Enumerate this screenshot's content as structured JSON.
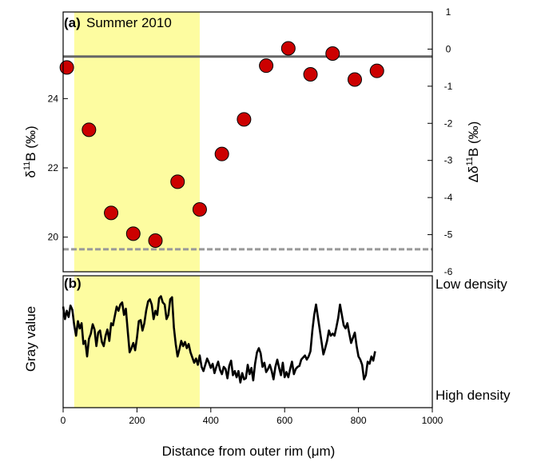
{
  "chart_data": [
    {
      "panel": "a",
      "type": "scatter",
      "title": "Summer 2010",
      "panel_label": "(a)",
      "ylabel_main": "δ",
      "ylabel_sup": "11",
      "ylabel_tail": "B (‰)",
      "y2label_main": "Δδ",
      "y2label_sup": "11",
      "y2label_tail": "B (‰)",
      "xlim": [
        0,
        1000
      ],
      "ylim": [
        19.0,
        26.5
      ],
      "y2lim": [
        -6,
        1
      ],
      "yticks": [
        20,
        22,
        24
      ],
      "y2ticks": [
        1,
        0,
        -1,
        -2,
        -3,
        -4,
        -5,
        -6
      ],
      "highlight_x_range": [
        30,
        370
      ],
      "highlight_color": "#fdfca0",
      "point_color": "#cc0000",
      "series": [
        {
          "x": [
            10,
            70,
            130,
            190,
            250,
            310,
            370,
            430,
            490,
            550,
            610,
            670,
            730,
            790,
            850
          ],
          "y": [
            24.9,
            23.1,
            20.7,
            20.1,
            19.9,
            21.6,
            20.8,
            22.4,
            23.4,
            24.95,
            25.45,
            24.7,
            25.3,
            24.55,
            24.8
          ]
        }
      ],
      "reference_lines": [
        {
          "y2": -0.2,
          "style": "solid",
          "color": "#666666"
        },
        {
          "y": 19.65,
          "style": "dashed",
          "color": "#999999"
        }
      ]
    },
    {
      "panel": "b",
      "type": "line",
      "panel_label": "(b)",
      "ylabel": "Gray value",
      "right_top_label": "Low density",
      "right_bottom_label": "High density",
      "xlabel": "Distance from outer rim (μm)",
      "xticks": [
        0,
        200,
        400,
        600,
        800,
        1000
      ],
      "xlim": [
        0,
        1000
      ],
      "ylim": [
        0,
        1
      ],
      "highlight_x_range": [
        30,
        370
      ],
      "line_color": "#000000",
      "series": [
        {
          "x": [
            0,
            5,
            10,
            15,
            20,
            25,
            30,
            35,
            40,
            45,
            50,
            55,
            60,
            65,
            70,
            75,
            80,
            85,
            90,
            95,
            100,
            105,
            110,
            115,
            120,
            125,
            130,
            135,
            140,
            145,
            150,
            155,
            160,
            165,
            170,
            175,
            180,
            185,
            190,
            195,
            200,
            205,
            210,
            215,
            220,
            225,
            230,
            235,
            240,
            245,
            250,
            255,
            260,
            265,
            270,
            275,
            280,
            285,
            290,
            295,
            300,
            305,
            310,
            315,
            320,
            325,
            330,
            335,
            340,
            345,
            350,
            355,
            360,
            365,
            370,
            375,
            380,
            385,
            390,
            395,
            400,
            405,
            410,
            415,
            420,
            425,
            430,
            435,
            440,
            445,
            450,
            455,
            460,
            465,
            470,
            475,
            480,
            485,
            490,
            495,
            500,
            505,
            510,
            515,
            520,
            525,
            530,
            535,
            540,
            545,
            550,
            555,
            560,
            565,
            570,
            575,
            580,
            585,
            590,
            595,
            600,
            605,
            610,
            615,
            620,
            625,
            630,
            635,
            640,
            645,
            650,
            655,
            660,
            665,
            670,
            675,
            680,
            685,
            690,
            695,
            700,
            705,
            710,
            715,
            720,
            725,
            730,
            735,
            740,
            745,
            750,
            755,
            760,
            765,
            770,
            775,
            780,
            785,
            790,
            795,
            800,
            805,
            810,
            815,
            820,
            825,
            830,
            835,
            840,
            845
          ],
          "y": [
            0.78,
            0.66,
            0.74,
            0.68,
            0.79,
            0.75,
            0.6,
            0.5,
            0.64,
            0.57,
            0.62,
            0.42,
            0.45,
            0.3,
            0.47,
            0.52,
            0.61,
            0.56,
            0.4,
            0.53,
            0.55,
            0.44,
            0.4,
            0.5,
            0.56,
            0.45,
            0.62,
            0.6,
            0.69,
            0.78,
            0.74,
            0.8,
            0.82,
            0.7,
            0.76,
            0.55,
            0.34,
            0.38,
            0.43,
            0.36,
            0.48,
            0.64,
            0.65,
            0.55,
            0.62,
            0.74,
            0.83,
            0.85,
            0.8,
            0.66,
            0.74,
            0.7,
            0.86,
            0.88,
            0.82,
            0.8,
            0.66,
            0.7,
            0.85,
            0.87,
            0.58,
            0.42,
            0.3,
            0.37,
            0.45,
            0.4,
            0.44,
            0.38,
            0.42,
            0.34,
            0.29,
            0.24,
            0.28,
            0.22,
            0.31,
            0.2,
            0.16,
            0.22,
            0.28,
            0.24,
            0.19,
            0.23,
            0.14,
            0.2,
            0.25,
            0.17,
            0.13,
            0.2,
            0.18,
            0.09,
            0.21,
            0.26,
            0.12,
            0.16,
            0.1,
            0.16,
            0.05,
            0.14,
            0.08,
            0.09,
            0.22,
            0.13,
            0.19,
            0.07,
            0.23,
            0.34,
            0.38,
            0.33,
            0.2,
            0.24,
            0.15,
            0.18,
            0.22,
            0.16,
            0.08,
            0.2,
            0.27,
            0.19,
            0.12,
            0.24,
            0.1,
            0.15,
            0.1,
            0.18,
            0.25,
            0.13,
            0.18,
            0.2,
            0.21,
            0.27,
            0.29,
            0.31,
            0.27,
            0.3,
            0.35,
            0.55,
            0.7,
            0.8,
            0.68,
            0.56,
            0.44,
            0.32,
            0.38,
            0.45,
            0.55,
            0.5,
            0.52,
            0.5,
            0.58,
            0.67,
            0.8,
            0.7,
            0.6,
            0.57,
            0.62,
            0.52,
            0.43,
            0.48,
            0.53,
            0.4,
            0.3,
            0.27,
            0.22,
            0.08,
            0.12,
            0.25,
            0.23,
            0.3,
            0.26,
            0.35
          ]
        }
      ]
    }
  ],
  "colors": {
    "highlight": "#fdfca0",
    "points": "#cc0000",
    "gray_line": "#666666",
    "dashed_line": "#999999"
  }
}
